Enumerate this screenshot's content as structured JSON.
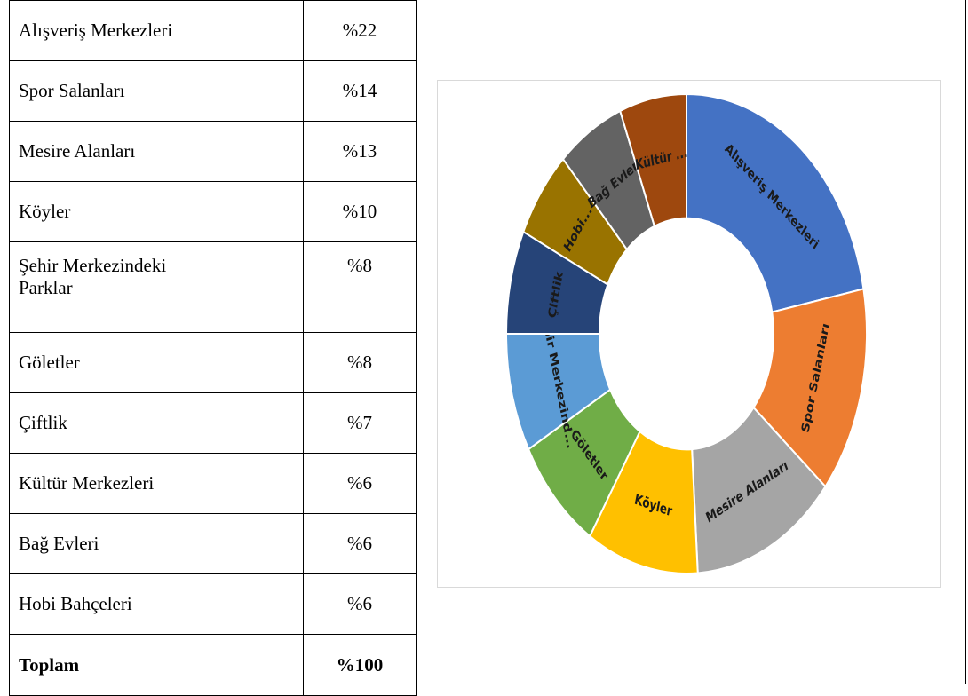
{
  "table": {
    "rows": [
      [
        "Alışveriş Merkezleri",
        "%22"
      ],
      [
        "Spor Salanları",
        "%14"
      ],
      [
        "Mesire Alanları",
        "%13"
      ],
      [
        "Köyler",
        "%10"
      ],
      [
        "Şehir Merkezindeki\nParklar",
        "%8"
      ],
      [
        "Göletler",
        "%8"
      ],
      [
        "Çiftlik",
        "%7"
      ],
      [
        "Kültür Merkezleri",
        "%6"
      ],
      [
        "Bağ Evleri",
        "%6"
      ],
      [
        "Hobi Bahçeleri",
        "%6"
      ]
    ],
    "total": [
      "Toplam",
      "%100"
    ]
  },
  "chart_data": {
    "type": "donut",
    "categories": [
      "Alışveriş Merkezleri",
      "Spor Salanları",
      "Mesire Alanları",
      "Köyler",
      "Göletler",
      "Şehir Merkezind...",
      "Çiftlik",
      "Hobi...",
      "Bağ Evleri",
      "Kültür ..."
    ],
    "values": [
      22,
      14,
      13,
      10,
      8,
      8,
      7,
      6,
      6,
      6
    ],
    "colors": [
      "#4472c4",
      "#ed7d31",
      "#a5a5a5",
      "#ffc000",
      "#70ad47",
      "#5b9bd5",
      "#264478",
      "#997300",
      "#636363",
      "#9e480e"
    ]
  }
}
